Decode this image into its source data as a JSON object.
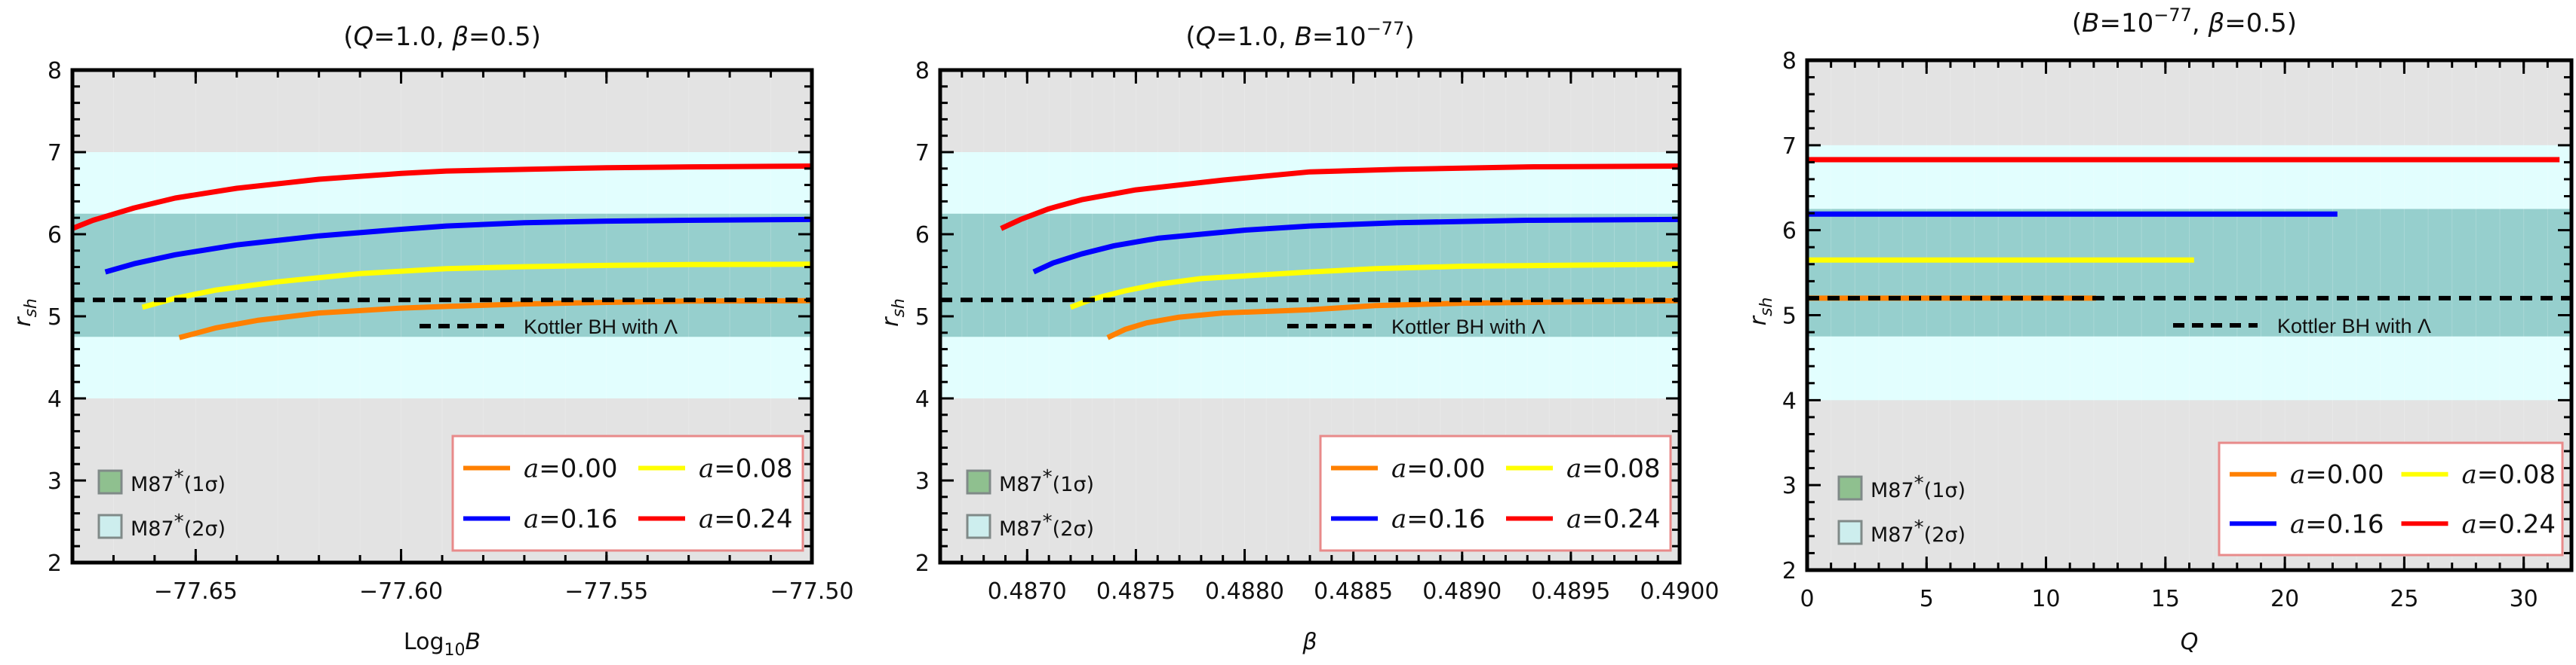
{
  "colors": {
    "band_outer": "#e3e3e3",
    "band_2sigma": "#e2fefe",
    "band_1sigma": "#96cfcd",
    "swatch_1sigma": "#8fc08f",
    "swatch_2sigma": "#cdeeee",
    "legend_border": "#e88a8a",
    "reference_line": "#000000"
  },
  "chart_data": [
    {
      "type": "line",
      "title": "(Q=1.0, β=0.5)",
      "title_parts": [
        "(",
        "Q",
        "=1.0, ",
        "β",
        "=0.5)"
      ],
      "xlabel": "Log10B",
      "xlabel_parts": [
        "Log",
        "10",
        "B"
      ],
      "ylabel": "rsh",
      "ylabel_parts": [
        "r",
        "sh"
      ],
      "xlim": [
        -77.68,
        -77.5
      ],
      "ylim": [
        2,
        8
      ],
      "xticks": [
        -77.65,
        -77.6,
        -77.55,
        -77.5
      ],
      "xtick_labels": [
        "−77.65",
        "−77.60",
        "−77.55",
        "−77.50"
      ],
      "xminor_step": 0.01,
      "yticks": [
        2,
        3,
        4,
        5,
        6,
        7,
        8
      ],
      "ytick_labels": [
        "2",
        "3",
        "4",
        "5",
        "6",
        "7",
        "8"
      ],
      "yminor_step": 0.2,
      "bands": [
        {
          "name": "M87*(2σ)",
          "y0": 4.0,
          "y1": 7.0
        },
        {
          "name": "M87*(1σ)",
          "y0": 4.75,
          "y1": 6.25
        }
      ],
      "reference": {
        "label": "Kottler BH with Λ",
        "y": 5.2,
        "style": "dashed"
      },
      "series": [
        {
          "name": "a=0.00",
          "a_label": "a",
          "value_label": "=0.00",
          "color": "#ff8000",
          "x": [
            -77.654,
            -77.645,
            -77.635,
            -77.62,
            -77.6,
            -77.589,
            -77.57,
            -77.55,
            -77.53,
            -77.5
          ],
          "y": [
            4.74,
            4.86,
            4.95,
            5.04,
            5.1,
            5.12,
            5.15,
            5.17,
            5.185,
            5.19
          ]
        },
        {
          "name": "a=0.08",
          "a_label": "a",
          "value_label": "=0.08",
          "color": "#ffff00",
          "x": [
            -77.663,
            -77.655,
            -77.645,
            -77.63,
            -77.61,
            -77.589,
            -77.57,
            -77.55,
            -77.53,
            -77.5
          ],
          "y": [
            5.11,
            5.22,
            5.32,
            5.42,
            5.52,
            5.58,
            5.605,
            5.62,
            5.63,
            5.635
          ]
        },
        {
          "name": "a=0.16",
          "a_label": "a",
          "value_label": "=0.16",
          "color": "#0000ff",
          "x": [
            -77.672,
            -77.665,
            -77.655,
            -77.64,
            -77.62,
            -77.6,
            -77.589,
            -77.57,
            -77.55,
            -77.53,
            -77.5
          ],
          "y": [
            5.54,
            5.64,
            5.75,
            5.87,
            5.98,
            6.06,
            6.1,
            6.14,
            6.16,
            6.17,
            6.18
          ]
        },
        {
          "name": "a=0.24",
          "a_label": "a",
          "value_label": "=0.24",
          "color": "#ff0000",
          "x": [
            -77.68,
            -77.675,
            -77.665,
            -77.655,
            -77.64,
            -77.62,
            -77.6,
            -77.589,
            -77.57,
            -77.55,
            -77.53,
            -77.5
          ],
          "y": [
            6.07,
            6.17,
            6.32,
            6.44,
            6.56,
            6.67,
            6.74,
            6.77,
            6.79,
            6.81,
            6.82,
            6.83
          ]
        }
      ],
      "band_legend": [
        {
          "label_main": "M87",
          "label_star": "*",
          "label_paren": "(1σ)",
          "sigma": "1σ"
        },
        {
          "label_main": "M87",
          "label_star": "*",
          "label_paren": "(2σ)",
          "sigma": "2σ"
        }
      ],
      "legend_position": "bottom-right"
    },
    {
      "type": "line",
      "title": "(Q=1.0, B=10^-77)",
      "title_parts": [
        "(",
        "Q",
        "=1.0, ",
        "B",
        "=10",
        "−77",
        ")"
      ],
      "xlabel": "β",
      "ylabel": "rsh",
      "ylabel_parts": [
        "r",
        "sh"
      ],
      "xlim": [
        0.4866,
        0.49
      ],
      "ylim": [
        2,
        8
      ],
      "xticks": [
        0.487,
        0.4875,
        0.488,
        0.4885,
        0.489,
        0.4895,
        0.49
      ],
      "xtick_labels": [
        "0.4870",
        "0.4875",
        "0.4880",
        "0.4885",
        "0.4890",
        "0.4895",
        "0.4900"
      ],
      "xminor_step": 0.0001,
      "yticks": [
        2,
        3,
        4,
        5,
        6,
        7,
        8
      ],
      "ytick_labels": [
        "2",
        "3",
        "4",
        "5",
        "6",
        "7",
        "8"
      ],
      "yminor_step": 0.2,
      "bands": [
        {
          "name": "M87*(2σ)",
          "y0": 4.0,
          "y1": 7.0
        },
        {
          "name": "M87*(1σ)",
          "y0": 4.75,
          "y1": 6.25
        }
      ],
      "reference": {
        "label": "Kottler BH with Λ",
        "y": 5.2,
        "style": "dashed"
      },
      "series": [
        {
          "name": "a=0.00",
          "a_label": "a",
          "value_label": "=0.00",
          "color": "#ff8000",
          "x": [
            0.48737,
            0.48745,
            0.48755,
            0.4877,
            0.4879,
            0.4883,
            0.4886,
            0.489,
            0.49
          ],
          "y": [
            4.74,
            4.84,
            4.92,
            4.99,
            5.04,
            5.08,
            5.13,
            5.16,
            5.19
          ]
        },
        {
          "name": "a=0.08",
          "a_label": "a",
          "value_label": "=0.08",
          "color": "#ffff00",
          "x": [
            0.4872,
            0.4873,
            0.48745,
            0.4876,
            0.4878,
            0.4883,
            0.4886,
            0.489,
            0.49
          ],
          "y": [
            5.11,
            5.21,
            5.31,
            5.39,
            5.46,
            5.54,
            5.58,
            5.61,
            5.635
          ]
        },
        {
          "name": "a=0.16",
          "a_label": "a",
          "value_label": "=0.16",
          "color": "#0000ff",
          "x": [
            0.48703,
            0.48712,
            0.48725,
            0.4874,
            0.4876,
            0.488,
            0.4883,
            0.4887,
            0.4893,
            0.49
          ],
          "y": [
            5.54,
            5.65,
            5.76,
            5.86,
            5.95,
            6.05,
            6.1,
            6.14,
            6.17,
            6.18
          ]
        },
        {
          "name": "a=0.24",
          "a_label": "a",
          "value_label": "=0.24",
          "color": "#ff0000",
          "x": [
            0.48688,
            0.48697,
            0.4871,
            0.48725,
            0.4875,
            0.4879,
            0.4883,
            0.4887,
            0.4893,
            0.49
          ],
          "y": [
            6.07,
            6.18,
            6.31,
            6.42,
            6.54,
            6.66,
            6.76,
            6.79,
            6.82,
            6.83
          ]
        }
      ],
      "band_legend": [
        {
          "label_main": "M87",
          "label_star": "*",
          "label_paren": "(1σ)",
          "sigma": "1σ"
        },
        {
          "label_main": "M87",
          "label_star": "*",
          "label_paren": "(2σ)",
          "sigma": "2σ"
        }
      ],
      "legend_position": "bottom-right"
    },
    {
      "type": "line",
      "title": "(B=10^-77, β=0.5)",
      "title_parts": [
        "(",
        "B",
        "=10",
        "−77",
        ", ",
        "β",
        "=0.5)"
      ],
      "xlabel": "Q",
      "ylabel": "rsh",
      "ylabel_parts": [
        "r",
        "sh"
      ],
      "xlim": [
        0,
        32
      ],
      "ylim": [
        2,
        8
      ],
      "xticks": [
        0,
        5,
        10,
        15,
        20,
        25,
        30
      ],
      "xtick_labels": [
        "0",
        "5",
        "10",
        "15",
        "20",
        "25",
        "30"
      ],
      "xminor_step": 1,
      "yticks": [
        2,
        3,
        4,
        5,
        6,
        7,
        8
      ],
      "ytick_labels": [
        "2",
        "3",
        "4",
        "5",
        "6",
        "7",
        "8"
      ],
      "yminor_step": 0.2,
      "bands": [
        {
          "name": "M87*(2σ)",
          "y0": 4.0,
          "y1": 7.0
        },
        {
          "name": "M87*(1σ)",
          "y0": 4.75,
          "y1": 6.25
        }
      ],
      "reference": {
        "label": "Kottler BH with Λ",
        "y": 5.2,
        "style": "dashed"
      },
      "series": [
        {
          "name": "a=0.00",
          "a_label": "a",
          "value_label": "=0.00",
          "color": "#ff8000",
          "x": [
            0,
            12.1
          ],
          "y": [
            5.2,
            5.2
          ]
        },
        {
          "name": "a=0.08",
          "a_label": "a",
          "value_label": "=0.08",
          "color": "#ffff00",
          "x": [
            0,
            16.2
          ],
          "y": [
            5.65,
            5.65
          ]
        },
        {
          "name": "a=0.16",
          "a_label": "a",
          "value_label": "=0.16",
          "color": "#0000ff",
          "x": [
            0,
            22.2
          ],
          "y": [
            6.19,
            6.19
          ]
        },
        {
          "name": "a=0.24",
          "a_label": "a",
          "value_label": "=0.24",
          "color": "#ff0000",
          "x": [
            0,
            31.5
          ],
          "y": [
            6.83,
            6.83
          ]
        }
      ],
      "band_legend": [
        {
          "label_main": "M87",
          "label_star": "*",
          "label_paren": "(1σ)",
          "sigma": "1σ"
        },
        {
          "label_main": "M87",
          "label_star": "*",
          "label_paren": "(2σ)",
          "sigma": "2σ"
        }
      ],
      "legend_position": "bottom-right"
    }
  ]
}
